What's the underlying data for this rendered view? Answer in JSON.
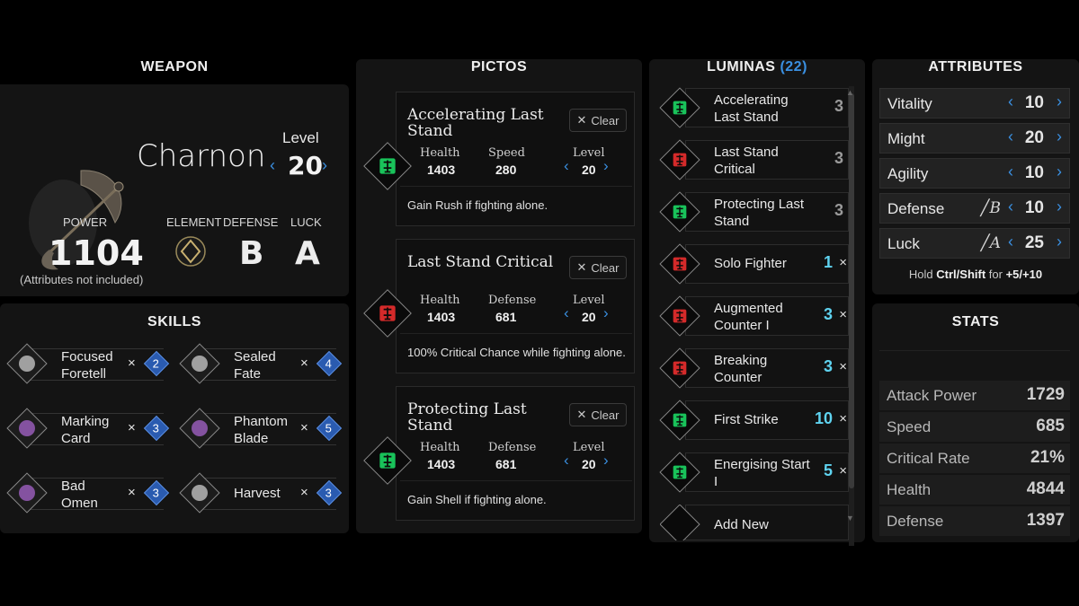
{
  "weapon": {
    "title": "WEAPON",
    "name": "Charnon",
    "level_label": "Level",
    "level": "20",
    "power_label": "POWER",
    "power": "1104",
    "power_note": "(Attributes not included)",
    "element_label": "ELEMENT",
    "defense_label": "DEFENSE",
    "luck_label": "LUCK",
    "defense_grade": "B",
    "luck_grade": "A"
  },
  "skills": {
    "title": "SKILLS",
    "items": [
      {
        "name_1": "Focused",
        "name_2": "Foretell",
        "cost": "2"
      },
      {
        "name_1": "Sealed",
        "name_2": "Fate",
        "cost": "4"
      },
      {
        "name_1": "Marking",
        "name_2": "Card",
        "cost": "3"
      },
      {
        "name_1": "Phantom",
        "name_2": "Blade",
        "cost": "5"
      },
      {
        "name_1": "Bad",
        "name_2": "Omen",
        "cost": "3"
      },
      {
        "name_1": "Harvest",
        "name_2": "",
        "cost": "3"
      }
    ]
  },
  "pictos": {
    "title": "PICTOS",
    "clear_label": "Clear",
    "level_label": "Level",
    "cards": [
      {
        "name": "Accelerating Last Stand",
        "stat1_label": "Health",
        "stat1": "1403",
        "stat2_label": "Speed",
        "stat2": "280",
        "level": "20",
        "effect": "Gain Rush if fighting alone.",
        "color": "#19c25a"
      },
      {
        "name": "Last Stand Critical",
        "stat1_label": "Health",
        "stat1": "1403",
        "stat2_label": "Defense",
        "stat2": "681",
        "level": "20",
        "effect": "100% Critical Chance while fighting alone.",
        "color": "#d42a2a"
      },
      {
        "name": "Protecting Last Stand",
        "stat1_label": "Health",
        "stat1": "1403",
        "stat2_label": "Defense",
        "stat2": "681",
        "level": "20",
        "effect": "Gain Shell if fighting alone.",
        "color": "#19c25a"
      }
    ]
  },
  "luminas": {
    "title": "LUMINAS",
    "count": "(22)",
    "items": [
      {
        "name": "Accelerating Last Stand",
        "cost": "3",
        "removable": false,
        "color": "#19c25a"
      },
      {
        "name": "Last Stand Critical",
        "cost": "3",
        "removable": false,
        "color": "#d42a2a"
      },
      {
        "name": "Protecting Last Stand",
        "cost": "3",
        "removable": false,
        "color": "#19c25a"
      },
      {
        "name": "Solo Fighter",
        "cost": "1",
        "removable": true,
        "color": "#d42a2a"
      },
      {
        "name": "Augmented Counter I",
        "cost": "3",
        "removable": true,
        "color": "#d42a2a"
      },
      {
        "name": "Breaking Counter",
        "cost": "3",
        "removable": true,
        "color": "#d42a2a"
      },
      {
        "name": "First Strike",
        "cost": "10",
        "removable": true,
        "color": "#19c25a"
      },
      {
        "name": "Energising Start I",
        "cost": "5",
        "removable": true,
        "color": "#19c25a"
      }
    ],
    "add_new": "Add New",
    "remove_glyph": "×"
  },
  "attributes": {
    "title": "ATTRIBUTES",
    "rows": [
      {
        "label": "Vitality",
        "value": "10",
        "grade": ""
      },
      {
        "label": "Might",
        "value": "20",
        "grade": ""
      },
      {
        "label": "Agility",
        "value": "10",
        "grade": ""
      },
      {
        "label": "Defense",
        "value": "10",
        "grade": "B"
      },
      {
        "label": "Luck",
        "value": "25",
        "grade": "A"
      }
    ],
    "hint_pre": "Hold ",
    "hint_keys": "Ctrl/Shift",
    "hint_mid": " for ",
    "hint_vals": "+5/+10"
  },
  "stats": {
    "title": "STATS",
    "rows": [
      {
        "label": "Attack Power",
        "value": "1729"
      },
      {
        "label": "Speed",
        "value": "685"
      },
      {
        "label": "Critical Rate",
        "value": "21%"
      },
      {
        "label": "Health",
        "value": "4844"
      },
      {
        "label": "Defense",
        "value": "1397"
      }
    ]
  },
  "colors": {
    "accent_blue": "#3a8fe0",
    "picto_green": "#19c25a",
    "picto_red": "#d42a2a",
    "cost_cyan": "#5fd3f0"
  }
}
